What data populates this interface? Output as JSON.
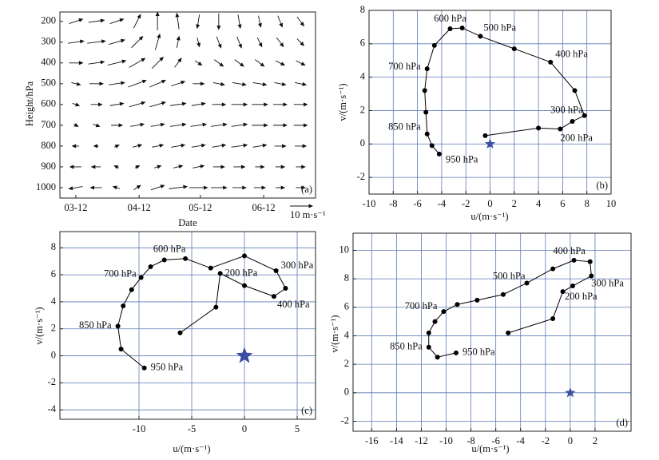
{
  "chart_data": [
    {
      "type": "quiver",
      "panel": "(a)",
      "x_label": "Date",
      "y_label": "Height/hPa",
      "xlim": [
        -7.8,
        117.4
      ],
      "xticks": [
        {
          "value": 0,
          "label": "03-12"
        },
        {
          "value": 31,
          "label": "04-12"
        },
        {
          "value": 61,
          "label": "05-12"
        },
        {
          "value": 92,
          "label": "06-12"
        }
      ],
      "ylim": [
        1050,
        155
      ],
      "yticks": [
        200,
        300,
        400,
        500,
        600,
        700,
        800,
        900,
        1000
      ],
      "x": [
        0,
        10,
        20,
        30,
        40,
        50,
        60,
        70,
        80,
        90,
        100,
        110
      ],
      "levels": [
        200,
        300,
        400,
        500,
        600,
        700,
        800,
        900,
        1000
      ],
      "u": [
        [
          6,
          7,
          6,
          3,
          0,
          -1,
          -1,
          0,
          1,
          1,
          2,
          3
        ],
        [
          7,
          8,
          7,
          5,
          2,
          1,
          1,
          2,
          2,
          2,
          3,
          3
        ],
        [
          6,
          7,
          8,
          7,
          5,
          3,
          3,
          4,
          4,
          4,
          4,
          4
        ],
        [
          4,
          6,
          7,
          8,
          7,
          6,
          5,
          5,
          6,
          6,
          5,
          5
        ],
        [
          3,
          5,
          6,
          7,
          7,
          7,
          6,
          6,
          7,
          7,
          6,
          6
        ],
        [
          2,
          3,
          5,
          6,
          6,
          7,
          7,
          7,
          7,
          7,
          6,
          6
        ],
        [
          -3,
          -2,
          2,
          4,
          5,
          6,
          6,
          6,
          7,
          6,
          5,
          5
        ],
        [
          -5,
          -4,
          -2,
          2,
          3,
          4,
          5,
          5,
          5,
          4,
          4,
          4
        ],
        [
          -6,
          -5,
          -3,
          3,
          6,
          8,
          8,
          7,
          6,
          5,
          4,
          4
        ]
      ],
      "v": [
        [
          2,
          1,
          2,
          6,
          8,
          7,
          -6,
          -7,
          -6,
          -5,
          -5,
          -4
        ],
        [
          1,
          1,
          2,
          5,
          7,
          5,
          -4,
          -5,
          -5,
          -4,
          -4,
          -3
        ],
        [
          0,
          1,
          2,
          4,
          5,
          4,
          -2,
          -3,
          -3,
          -3,
          -2,
          -2
        ],
        [
          -1,
          0,
          1,
          3,
          3,
          2,
          0,
          -1,
          -1,
          -1,
          -1,
          -1
        ],
        [
          -1,
          0,
          1,
          2,
          2,
          1,
          1,
          0,
          0,
          0,
          0,
          0
        ],
        [
          -1,
          -1,
          0,
          1,
          1,
          1,
          1,
          1,
          1,
          0,
          0,
          0
        ],
        [
          0,
          0,
          1,
          1,
          1,
          1,
          1,
          1,
          1,
          1,
          0,
          0
        ],
        [
          0,
          0,
          1,
          1,
          1,
          1,
          1,
          0,
          0,
          0,
          0,
          0
        ],
        [
          -1,
          0,
          1,
          2,
          2,
          1,
          0,
          0,
          0,
          0,
          0,
          0
        ]
      ],
      "color": "#111111",
      "key": 10,
      "key_label": "10 m·s⁻¹",
      "grid": false
    },
    {
      "type": "hodograph",
      "panel": "(b)",
      "x_label": "u/(m·s⁻¹)",
      "y_label": "v/(m·s⁻¹)",
      "xlim": [
        -10,
        10
      ],
      "xticks": [
        -10,
        -8,
        -6,
        -4,
        -2,
        0,
        2,
        4,
        6,
        8,
        10
      ],
      "ylim": [
        -3,
        8
      ],
      "yticks": [
        -2,
        0,
        2,
        4,
        6,
        8
      ],
      "u": [
        -4.2,
        -4.8,
        -5.2,
        -5.3,
        -5.4,
        -5.2,
        -4.6,
        -3.3,
        -2.3,
        -0.8,
        2,
        5,
        7,
        7.8,
        6.8,
        5.8,
        4,
        -0.4
      ],
      "v": [
        -0.6,
        -0.1,
        0.6,
        1.9,
        3.2,
        4.5,
        5.9,
        6.9,
        6.95,
        6.45,
        5.7,
        4.9,
        3.2,
        1.7,
        1.35,
        0.9,
        0.95,
        0.5
      ],
      "labels": [
        "950 hPa",
        null,
        "850 hPa",
        null,
        null,
        "700 hPa",
        null,
        "600 hPa",
        null,
        "500 hPa",
        null,
        "400 hPa",
        null,
        "300 hPa",
        null,
        "200 hPa",
        null,
        null
      ],
      "star": {
        "x": 0,
        "y": 0
      },
      "color": "#000000",
      "label_color": "#d0203c",
      "star_color": "#3b4ea2",
      "grid": true,
      "grid_color": "#5b7bb5"
    },
    {
      "type": "hodograph",
      "panel": "(c)",
      "x_label": "u/(m·s⁻¹)",
      "y_label": "v/(m·s⁻¹)",
      "xlim": [
        -17.5,
        6.74
      ],
      "xticks": [
        -10,
        -5,
        0,
        5
      ],
      "ylim": [
        -4.7,
        9.2
      ],
      "yticks": [
        -4,
        -2,
        0,
        2,
        4,
        6,
        8
      ],
      "u": [
        -9.5,
        -11.7,
        -12,
        -11.5,
        -10.7,
        -9.8,
        -8.9,
        -7.6,
        -5.6,
        -3.2,
        0,
        3,
        3.9,
        2.8,
        0,
        -2.3,
        -2.7,
        -6.1
      ],
      "v": [
        -0.9,
        0.5,
        2.2,
        3.7,
        4.9,
        5.8,
        6.6,
        7.1,
        7.2,
        6.5,
        7.4,
        6.3,
        5.0,
        4.4,
        5.2,
        6.1,
        3.6,
        1.7
      ],
      "labels": [
        "950 hPa",
        null,
        "850 hPa",
        null,
        null,
        "700 hPa",
        null,
        null,
        "600 hPa",
        null,
        null,
        "300 hPa",
        null,
        "400 hPa",
        null,
        "200 hPa",
        null,
        null
      ],
      "star": {
        "x": 0,
        "y": 0
      },
      "color": "#000000",
      "label_color": "#d0203c",
      "star_color": "#3b4ea2",
      "grid": true,
      "grid_color": "#5b7bb5"
    },
    {
      "type": "hodograph",
      "panel": "(d)",
      "x_label": "u/(m·s⁻¹)",
      "y_label": "v/(m·s⁻¹)",
      "xlim": [
        -17.5,
        4.9
      ],
      "xticks": [
        -16,
        -14,
        -12,
        -10,
        -8,
        -6,
        -4,
        -2,
        0,
        2
      ],
      "ylim": [
        -2.7,
        11.2
      ],
      "yticks": [
        -2,
        0,
        2,
        4,
        6,
        8,
        10
      ],
      "u": [
        -9.2,
        -10.7,
        -11.4,
        -11.4,
        -10.9,
        -10.2,
        -9.1,
        -7.5,
        -5.4,
        -3.5,
        -1.4,
        0.3,
        1.6,
        1.7,
        0.2,
        -0.6,
        -1.4,
        -5
      ],
      "v": [
        2.8,
        2.5,
        3.2,
        4.2,
        5.0,
        5.7,
        6.2,
        6.5,
        6.9,
        7.7,
        8.7,
        9.3,
        9.2,
        8.2,
        7.5,
        7.1,
        5.2,
        4.2
      ],
      "labels": [
        "950 hPa",
        null,
        "850 hPa",
        null,
        null,
        "700 hPa",
        null,
        null,
        null,
        "500 hPa",
        null,
        "400 hPa",
        null,
        "300 hPa",
        "200 hPa",
        null,
        null,
        null
      ],
      "star": {
        "x": 0,
        "y": 0
      },
      "color": "#000000",
      "label_color": "#d0203c",
      "star_color": "#3b4ea2",
      "grid": true,
      "grid_color": "#5b7bb5"
    }
  ]
}
